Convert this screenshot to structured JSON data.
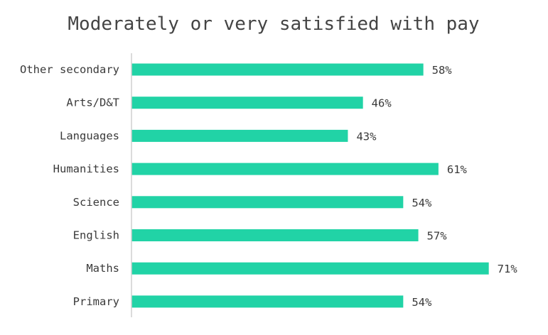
{
  "chart_data": {
    "type": "bar",
    "orientation": "horizontal",
    "title": "Moderately or very satisfied with pay",
    "categories": [
      "Other secondary",
      "Arts/D&T",
      "Languages",
      "Humanities",
      "Science",
      "English",
      "Maths",
      "Primary"
    ],
    "values": [
      58,
      46,
      43,
      61,
      54,
      57,
      71,
      54
    ],
    "value_labels": [
      "58%",
      "46%",
      "43%",
      "61%",
      "54%",
      "57%",
      "71%",
      "54%"
    ],
    "value_suffix": "%",
    "xlabel": "",
    "ylabel": "",
    "xlim": [
      0,
      75
    ],
    "grid": false,
    "legend": "none",
    "colors": {
      "bar": "#21d3a6",
      "axis": "#cfcfcf",
      "text": "#3a3a3a",
      "title": "#444444"
    }
  }
}
